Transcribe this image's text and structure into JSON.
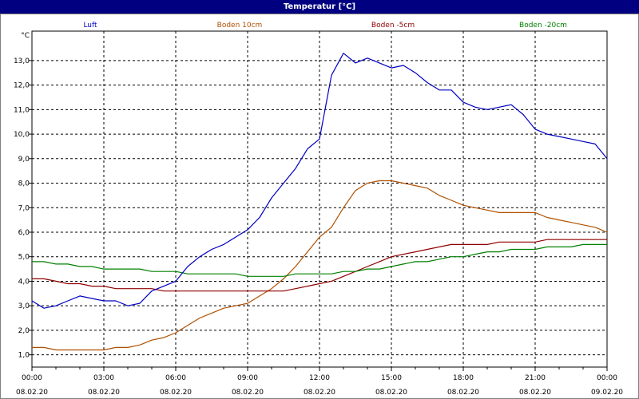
{
  "window": {
    "title": "Temperatur [°C]"
  },
  "chart_data": {
    "type": "line",
    "title": "Temperatur [°C]",
    "ylabel": "°C",
    "xlabel": "",
    "ylim": [
      0.5,
      14.2
    ],
    "xlim": [
      0,
      24
    ],
    "grid": true,
    "legend_placement": "top",
    "y_ticks": [
      "1,0",
      "2,0",
      "3,0",
      "4,0",
      "5,0",
      "6,0",
      "7,0",
      "8,0",
      "9,0",
      "10,0",
      "11,0",
      "12,0",
      "13,0"
    ],
    "x_ticks": [
      {
        "time": "00:00",
        "date": "08.02.20"
      },
      {
        "time": "03:00",
        "date": "08.02.20"
      },
      {
        "time": "06:00",
        "date": "08.02.20"
      },
      {
        "time": "09:00",
        "date": "08.02.20"
      },
      {
        "time": "12:00",
        "date": "08.02.20"
      },
      {
        "time": "15:00",
        "date": "08.02.20"
      },
      {
        "time": "18:00",
        "date": "08.02.20"
      },
      {
        "time": "21:00",
        "date": "08.02.20"
      },
      {
        "time": "00:00",
        "date": "09.02.20"
      }
    ],
    "x_hours": [
      0,
      0.5,
      1,
      1.5,
      2,
      2.5,
      3,
      3.5,
      4,
      4.5,
      5,
      5.5,
      6,
      6.5,
      7,
      7.5,
      8,
      8.5,
      9,
      9.5,
      10,
      10.5,
      11,
      11.5,
      12,
      12.5,
      13,
      13.5,
      14,
      14.5,
      15,
      15.5,
      16,
      16.5,
      17,
      17.5,
      18,
      18.5,
      19,
      19.5,
      20,
      20.5,
      21,
      21.5,
      22,
      22.5,
      23,
      23.5,
      24
    ],
    "series": [
      {
        "name": "Luft",
        "color": "#0000c0",
        "values": [
          3.2,
          2.9,
          3.0,
          3.2,
          3.4,
          3.3,
          3.2,
          3.2,
          3.0,
          3.1,
          3.6,
          3.8,
          4.0,
          4.6,
          5.0,
          5.3,
          5.5,
          5.8,
          6.1,
          6.6,
          7.4,
          8.0,
          8.6,
          9.4,
          9.8,
          12.4,
          13.3,
          12.9,
          13.1,
          12.9,
          12.7,
          12.8,
          12.5,
          12.1,
          11.8,
          11.8,
          11.3,
          11.1,
          11.0,
          11.1,
          11.2,
          10.8,
          10.2,
          10.0,
          9.9,
          9.8,
          9.7,
          9.6,
          9.0
        ]
      },
      {
        "name": "Boden 10cm",
        "color": "#b05000",
        "values": [
          1.3,
          1.3,
          1.2,
          1.2,
          1.2,
          1.2,
          1.2,
          1.3,
          1.3,
          1.4,
          1.6,
          1.7,
          1.9,
          2.2,
          2.5,
          2.7,
          2.9,
          3.0,
          3.1,
          3.4,
          3.7,
          4.1,
          4.6,
          5.2,
          5.8,
          6.2,
          7.0,
          7.7,
          8.0,
          8.1,
          8.1,
          8.0,
          7.9,
          7.8,
          7.5,
          7.3,
          7.1,
          7.0,
          6.9,
          6.8,
          6.8,
          6.8,
          6.8,
          6.6,
          6.5,
          6.4,
          6.3,
          6.2,
          6.0
        ]
      },
      {
        "name": "Boden -5cm",
        "color": "#900000",
        "values": [
          4.1,
          4.1,
          4.0,
          3.9,
          3.9,
          3.8,
          3.8,
          3.7,
          3.7,
          3.7,
          3.7,
          3.6,
          3.6,
          3.6,
          3.6,
          3.6,
          3.6,
          3.6,
          3.6,
          3.6,
          3.6,
          3.6,
          3.7,
          3.8,
          3.9,
          4.0,
          4.2,
          4.4,
          4.6,
          4.8,
          5.0,
          5.1,
          5.2,
          5.3,
          5.4,
          5.5,
          5.5,
          5.5,
          5.5,
          5.6,
          5.6,
          5.6,
          5.6,
          5.7,
          5.7,
          5.7,
          5.7,
          5.7,
          5.7
        ]
      },
      {
        "name": "Boden -20cm",
        "color": "#008000",
        "values": [
          4.8,
          4.8,
          4.7,
          4.7,
          4.6,
          4.6,
          4.5,
          4.5,
          4.5,
          4.5,
          4.4,
          4.4,
          4.4,
          4.3,
          4.3,
          4.3,
          4.3,
          4.3,
          4.2,
          4.2,
          4.2,
          4.2,
          4.3,
          4.3,
          4.3,
          4.3,
          4.4,
          4.4,
          4.5,
          4.5,
          4.6,
          4.7,
          4.8,
          4.8,
          4.9,
          5.0,
          5.0,
          5.1,
          5.2,
          5.2,
          5.3,
          5.3,
          5.3,
          5.4,
          5.4,
          5.4,
          5.5,
          5.5,
          5.5
        ]
      }
    ]
  }
}
